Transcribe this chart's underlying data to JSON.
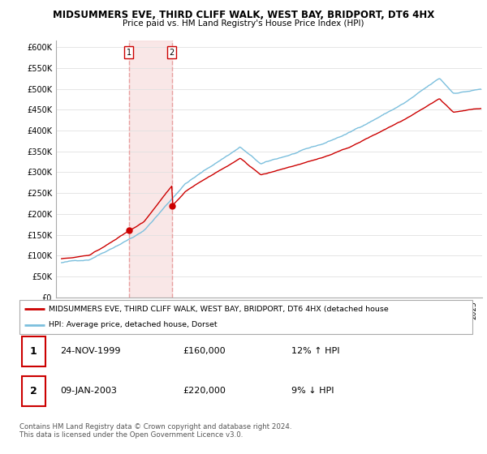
{
  "title": "MIDSUMMERS EVE, THIRD CLIFF WALK, WEST BAY, BRIDPORT, DT6 4HX",
  "subtitle": "Price paid vs. HM Land Registry's House Price Index (HPI)",
  "ylabel_ticks": [
    "£0",
    "£50K",
    "£100K",
    "£150K",
    "£200K",
    "£250K",
    "£300K",
    "£350K",
    "£400K",
    "£450K",
    "£500K",
    "£550K",
    "£600K"
  ],
  "ytick_vals": [
    0,
    50000,
    100000,
    150000,
    200000,
    250000,
    300000,
    350000,
    400000,
    450000,
    500000,
    550000,
    600000
  ],
  "ylim": [
    0,
    615000
  ],
  "hpi_color": "#7bbfdd",
  "price_color": "#cc0000",
  "marker_color": "#cc0000",
  "vline_color": "#e8a0a0",
  "shade_color": "#f5d0d0",
  "purchase1": {
    "date_num": 1999.9,
    "price": 160000,
    "label": "1"
  },
  "purchase2": {
    "date_num": 2003.03,
    "price": 220000,
    "label": "2"
  },
  "legend_entries": [
    "MIDSUMMERS EVE, THIRD CLIFF WALK, WEST BAY, BRIDPORT, DT6 4HX (detached house",
    "HPI: Average price, detached house, Dorset"
  ],
  "table_rows": [
    {
      "num": "1",
      "date": "24-NOV-1999",
      "price": "£160,000",
      "hpi": "12% ↑ HPI"
    },
    {
      "num": "2",
      "date": "09-JAN-2003",
      "price": "£220,000",
      "hpi": "9% ↓ HPI"
    }
  ],
  "footnote": "Contains HM Land Registry data © Crown copyright and database right 2024.\nThis data is licensed under the Open Government Licence v3.0.",
  "grid_color": "#e0e0e0",
  "xlim": [
    1994.6,
    2025.6
  ],
  "xtick_start": 1995,
  "xtick_end": 2026
}
